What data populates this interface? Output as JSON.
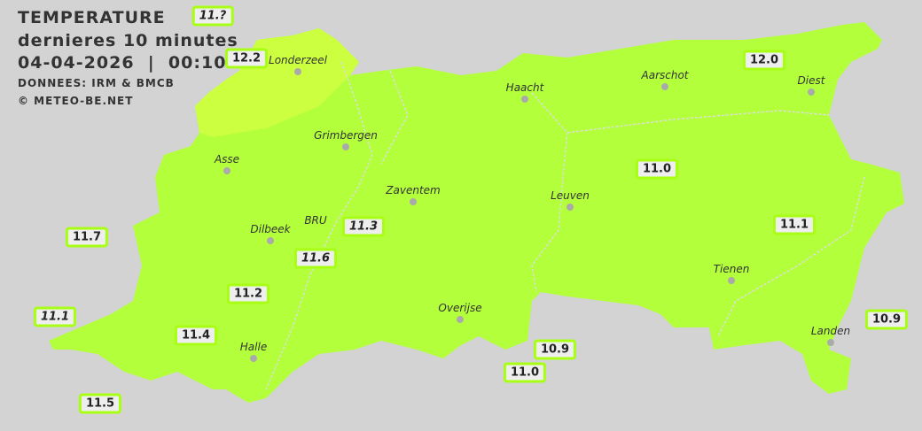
{
  "header": {
    "title": "TEMPERATURE",
    "subtitle": "dernieres 10 minutes",
    "datetime": "04-04-2026  |  00:10",
    "source": "DONNEES: IRM & BMCB",
    "copyright": "© METEO-BE.NET"
  },
  "colors": {
    "background": "#d3d3d3",
    "land": "#b3ff3c",
    "warm_zone": "#ccff40",
    "label_border": "#a8ff14"
  },
  "cities": [
    "Londerzeel",
    "Grimbergen",
    "Asse",
    "Dilbeek",
    "BRU",
    "Zaventem",
    "Haacht",
    "Aarschot",
    "Diest",
    "Leuven",
    "Tienen",
    "Overijse",
    "Halle",
    "Landen"
  ],
  "readings": [
    "11.?",
    "12.2",
    "12.0",
    "11.0",
    "11.1",
    "11.7",
    "11.3",
    "11.6",
    "11.2",
    "11.1",
    "11.4",
    "11.5",
    "10.9",
    "11.0",
    "10.9"
  ]
}
